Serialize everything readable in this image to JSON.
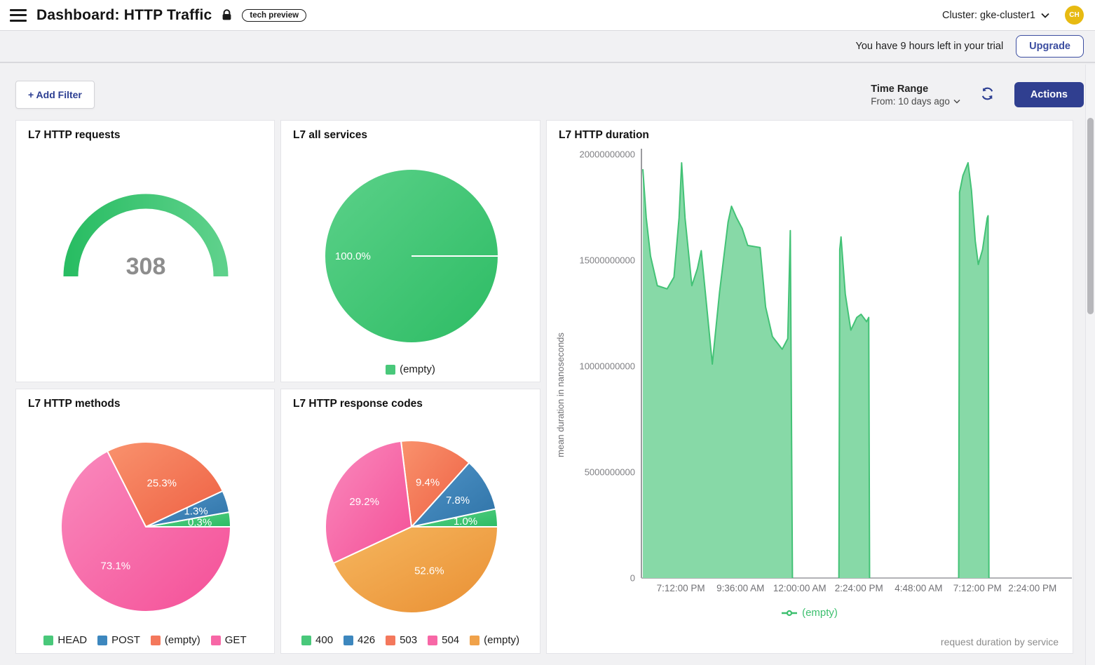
{
  "header": {
    "title": "Dashboard: HTTP Traffic",
    "badge": "tech preview",
    "cluster_label": "Cluster: gke-cluster1",
    "avatar_initials": "CH"
  },
  "trial_bar": {
    "message": "You have 9 hours left in your trial",
    "upgrade_label": "Upgrade"
  },
  "toolbar": {
    "add_filter_label": "+ Add Filter",
    "time_range_label": "Time Range",
    "time_range_value": "From: 10 days ago",
    "actions_label": "Actions"
  },
  "colors": {
    "green": {
      "solid": "#49c87a",
      "grad": [
        "#5bd189",
        "#2dbc64"
      ]
    },
    "blue": {
      "solid": "#3d87be",
      "grad": [
        "#4f94c8",
        "#2f73a7"
      ]
    },
    "salmon": {
      "solid": "#f4785c",
      "grad": [
        "#f9926d",
        "#ee6043"
      ]
    },
    "pink": {
      "solid": "#f767a6",
      "grad": [
        "#fa8abd",
        "#f44f97"
      ]
    },
    "orange": {
      "solid": "#f0a24a",
      "grad": [
        "#f6b75f",
        "#e98f33"
      ]
    },
    "gauge_grad": [
      "#29bd63",
      "#5ed18b"
    ],
    "area_fill": "#87d9a7",
    "area_stroke": "#43c276",
    "legend_text_green": "#3cbf6e"
  },
  "chart_data": [
    {
      "id": "requests-gauge",
      "type": "gauge",
      "title": "L7 HTTP requests",
      "value": 308,
      "display_value": "308"
    },
    {
      "id": "all-services-pie",
      "type": "pie",
      "title": "L7 all services",
      "slices": [
        {
          "label": "(empty)",
          "value_pct": 100.0,
          "display": "100.0%",
          "color": "green",
          "start_deg": 0,
          "end_deg": 360,
          "label_deg": 180,
          "label_r": 0.68
        }
      ]
    },
    {
      "id": "duration-area",
      "type": "area",
      "title": "L7 HTTP duration",
      "ylabel": "mean duration in nanoseconds",
      "series_name": "(empty)",
      "caption": "request duration by service",
      "ylim": [
        0,
        20000000000
      ],
      "y_ticks": [
        {
          "v": 0,
          "label": "0"
        },
        {
          "v": 5000000000,
          "label": "5000000000"
        },
        {
          "v": 10000000000,
          "label": "10000000000"
        },
        {
          "v": 15000000000,
          "label": "15000000000"
        },
        {
          "v": 20000000000,
          "label": "20000000000"
        }
      ],
      "x_ticks": [
        {
          "f": 0.089,
          "label": "7:12:00 PM"
        },
        {
          "f": 0.229,
          "label": "9:36:00 AM"
        },
        {
          "f": 0.368,
          "label": "12:00:00 AM"
        },
        {
          "f": 0.507,
          "label": "2:24:00 PM"
        },
        {
          "f": 0.647,
          "label": "4:48:00 AM"
        },
        {
          "f": 0.785,
          "label": "7:12:00 PM"
        },
        {
          "f": 0.914,
          "label": "2:24:00 PM"
        }
      ],
      "points": [
        [
          0.0,
          19300000000
        ],
        [
          0.008,
          17000000000
        ],
        [
          0.018,
          15200000000
        ],
        [
          0.034,
          13800000000
        ],
        [
          0.057,
          13650000000
        ],
        [
          0.073,
          14200000000
        ],
        [
          0.085,
          17000000000
        ],
        [
          0.091,
          19600000000
        ],
        [
          0.099,
          17000000000
        ],
        [
          0.115,
          13800000000
        ],
        [
          0.128,
          14600000000
        ],
        [
          0.137,
          15450000000
        ],
        [
          0.148,
          13200000000
        ],
        [
          0.163,
          10100000000
        ],
        [
          0.18,
          13500000000
        ],
        [
          0.2,
          16800000000
        ],
        [
          0.208,
          17550000000
        ],
        [
          0.22,
          17000000000
        ],
        [
          0.233,
          16500000000
        ],
        [
          0.246,
          15700000000
        ],
        [
          0.275,
          15600000000
        ],
        [
          0.288,
          12800000000
        ],
        [
          0.304,
          11400000000
        ],
        [
          0.327,
          10800000000
        ],
        [
          0.34,
          11300000000
        ],
        [
          0.346,
          16400000000
        ],
        [
          0.351,
          0
        ],
        [
          0.46,
          0
        ],
        [
          0.462,
          15500000000
        ],
        [
          0.465,
          16100000000
        ],
        [
          0.475,
          13400000000
        ],
        [
          0.488,
          11700000000
        ],
        [
          0.502,
          12300000000
        ],
        [
          0.512,
          12450000000
        ],
        [
          0.525,
          12100000000
        ],
        [
          0.53,
          12300000000
        ],
        [
          0.532,
          0
        ],
        [
          0.741,
          0
        ],
        [
          0.743,
          18200000000
        ],
        [
          0.751,
          19000000000
        ],
        [
          0.763,
          19600000000
        ],
        [
          0.771,
          18300000000
        ],
        [
          0.78,
          15900000000
        ],
        [
          0.787,
          14800000000
        ],
        [
          0.797,
          15500000000
        ],
        [
          0.808,
          17000000000
        ],
        [
          0.81,
          17100000000
        ],
        [
          0.812,
          0
        ]
      ]
    },
    {
      "id": "methods-pie",
      "type": "pie",
      "title": "L7 HTTP methods",
      "slices": [
        {
          "label": "HEAD",
          "value_pct": 0.3,
          "display": "0.3%",
          "color": "green",
          "start_deg": 0,
          "end_deg": 10,
          "label_deg": 5,
          "label_r": 0.64
        },
        {
          "label": "POST",
          "value_pct": 1.3,
          "display": "1.3%",
          "color": "blue",
          "start_deg": 10,
          "end_deg": 25,
          "label_deg": 17.5,
          "label_r": 0.62
        },
        {
          "label": "(empty)",
          "value_pct": 25.3,
          "display": "25.3%",
          "color": "salmon",
          "start_deg": 25,
          "end_deg": 117,
          "label_deg": 70,
          "label_r": 0.55
        },
        {
          "label": "GET",
          "value_pct": 73.1,
          "display": "73.1%",
          "color": "pink",
          "start_deg": 117,
          "end_deg": 360,
          "label_deg": 232,
          "label_r": 0.58
        }
      ]
    },
    {
      "id": "response-codes-pie",
      "type": "pie",
      "title": "L7 HTTP response codes",
      "slices": [
        {
          "label": "400",
          "value_pct": 1.0,
          "display": "1.0%",
          "color": "green",
          "start_deg": 0,
          "end_deg": 12,
          "label_deg": 6,
          "label_r": 0.63
        },
        {
          "label": "426",
          "value_pct": 7.8,
          "display": "7.8%",
          "color": "blue",
          "start_deg": 12,
          "end_deg": 48,
          "label_deg": 30,
          "label_r": 0.62
        },
        {
          "label": "503",
          "value_pct": 9.4,
          "display": "9.4%",
          "color": "salmon",
          "start_deg": 48,
          "end_deg": 97,
          "label_deg": 70,
          "label_r": 0.55
        },
        {
          "label": "504",
          "value_pct": 29.2,
          "display": "29.2%",
          "color": "pink",
          "start_deg": 97,
          "end_deg": 205,
          "label_deg": 152,
          "label_r": 0.62
        },
        {
          "label": "(empty)",
          "value_pct": 52.6,
          "display": "52.6%",
          "color": "orange",
          "start_deg": 205,
          "end_deg": 360,
          "label_deg": 292,
          "label_r": 0.55
        }
      ]
    }
  ]
}
